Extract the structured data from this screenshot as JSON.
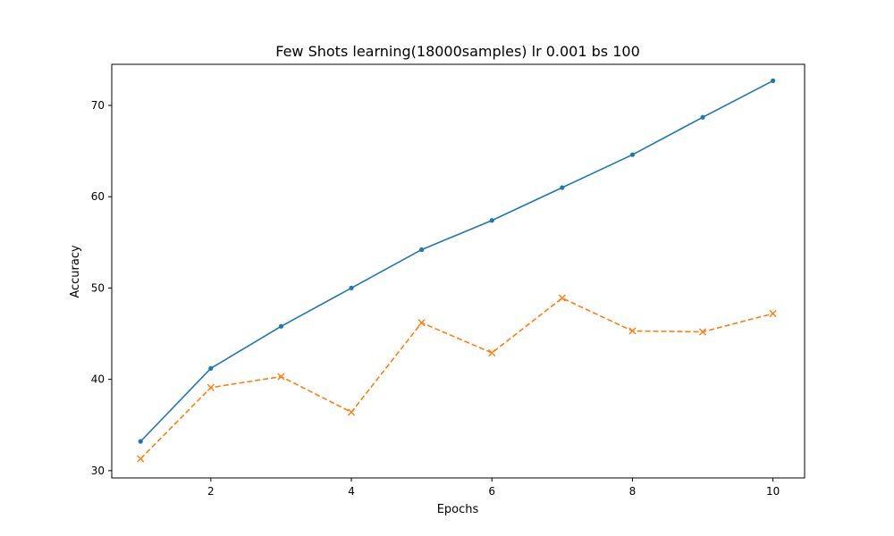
{
  "chart_data": {
    "type": "line",
    "title": "Few Shots learning(18000samples) lr 0.001 bs 100",
    "xlabel": "Epochs",
    "ylabel": "Accuracy",
    "x": [
      1,
      2,
      3,
      4,
      5,
      6,
      7,
      8,
      9,
      10
    ],
    "xlim": [
      0.59,
      10.45
    ],
    "ylim": [
      29.2,
      74.5
    ],
    "xticks": [
      2,
      4,
      6,
      8,
      10
    ],
    "yticks": [
      30,
      40,
      50,
      60,
      70
    ],
    "grid": false,
    "legend": "none",
    "series": [
      {
        "values": [
          33.2,
          41.2,
          45.8,
          50.0,
          54.2,
          57.4,
          61.0,
          64.6,
          68.7,
          72.7
        ],
        "color": "#1f77b4",
        "line_style": "solid",
        "marker": "dot"
      },
      {
        "values": [
          31.3,
          39.1,
          40.3,
          36.4,
          46.2,
          42.9,
          48.9,
          45.3,
          45.2,
          47.2
        ],
        "color": "#ff7f0e",
        "line_style": "dashed",
        "marker": "x"
      }
    ]
  }
}
